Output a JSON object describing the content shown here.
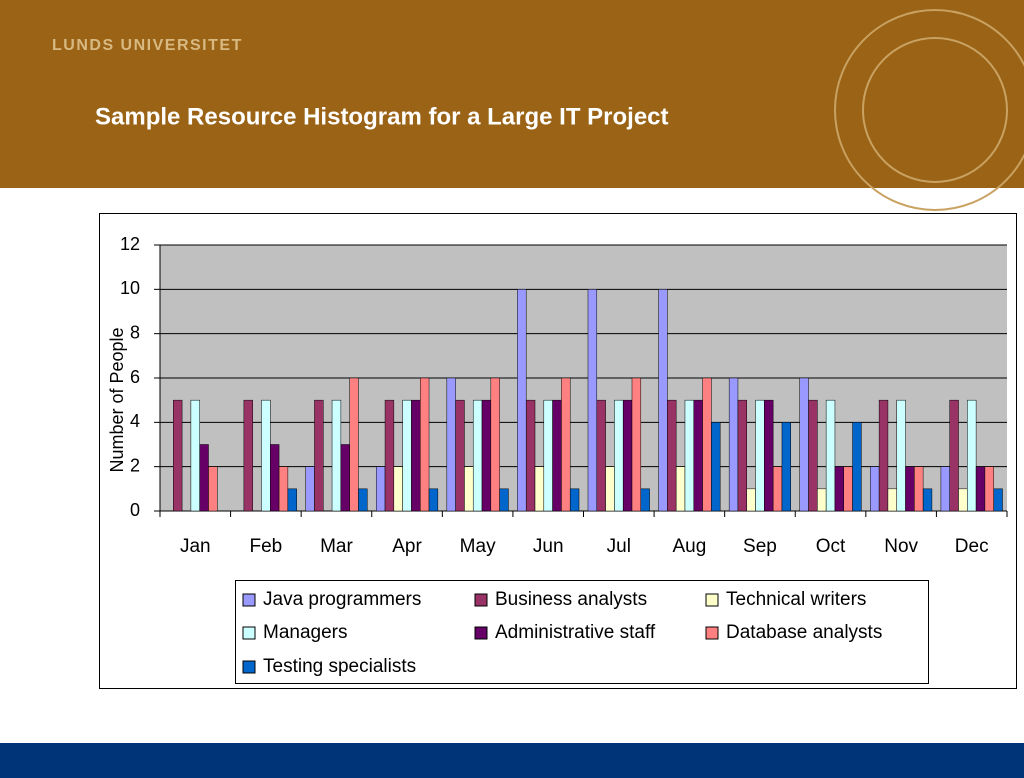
{
  "header": {
    "org": "LUNDS UNIVERSITET",
    "title": "Sample Resource Histogram for a Large IT Project"
  },
  "chart_data": {
    "type": "bar",
    "y_label": "Number of People",
    "categories": [
      "Jan",
      "Feb",
      "Mar",
      "Apr",
      "May",
      "Jun",
      "Jul",
      "Aug",
      "Sep",
      "Oct",
      "Nov",
      "Dec"
    ],
    "series": [
      {
        "name": "Java programmers",
        "color": "#9999ff",
        "values": [
          0,
          0,
          2,
          2,
          6,
          10,
          10,
          10,
          6,
          6,
          2,
          2
        ]
      },
      {
        "name": "Business analysts",
        "color": "#993366",
        "values": [
          5,
          5,
          5,
          5,
          5,
          5,
          5,
          5,
          5,
          5,
          5,
          5
        ]
      },
      {
        "name": "Technical writers",
        "color": "#ffffcc",
        "values": [
          0,
          0,
          0,
          2,
          2,
          2,
          2,
          2,
          1,
          1,
          1,
          1
        ]
      },
      {
        "name": "Managers",
        "color": "#ccffff",
        "values": [
          5,
          5,
          5,
          5,
          5,
          5,
          5,
          5,
          5,
          5,
          5,
          5
        ]
      },
      {
        "name": "Administrative staff",
        "color": "#660066",
        "values": [
          3,
          3,
          3,
          5,
          5,
          5,
          5,
          5,
          5,
          2,
          2,
          2
        ]
      },
      {
        "name": "Database analysts",
        "color": "#ff8080",
        "values": [
          2,
          2,
          6,
          6,
          6,
          6,
          6,
          6,
          2,
          2,
          2,
          2
        ]
      },
      {
        "name": "Testing specialists",
        "color": "#0066cc",
        "values": [
          0,
          1,
          1,
          1,
          1,
          1,
          1,
          4,
          4,
          4,
          1,
          1
        ]
      }
    ],
    "ylim": [
      0,
      12
    ],
    "yticks": [
      0,
      2,
      4,
      6,
      8,
      10,
      12
    ],
    "grid": true,
    "legend": "bottom"
  }
}
